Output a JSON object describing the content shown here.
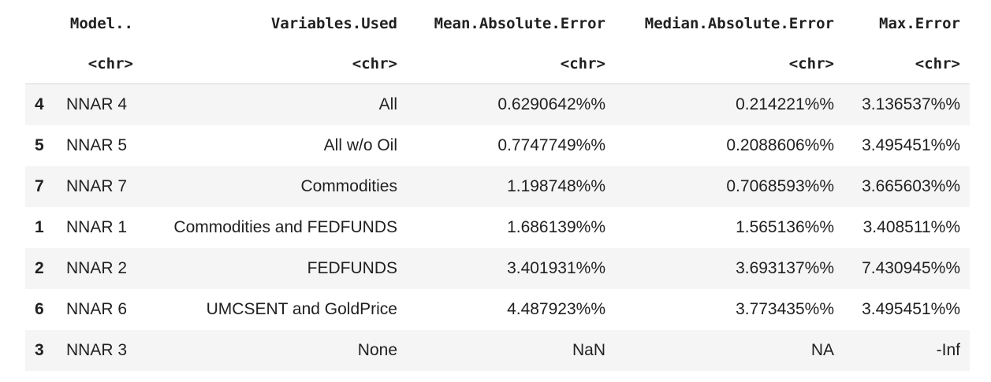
{
  "columns": [
    {
      "name": "",
      "type": ""
    },
    {
      "name": "Model..",
      "type": "<chr>"
    },
    {
      "name": "Variables.Used",
      "type": "<chr>"
    },
    {
      "name": "Mean.Absolute.Error",
      "type": "<chr>"
    },
    {
      "name": "Median.Absolute.Error",
      "type": "<chr>"
    },
    {
      "name": "Max.Error",
      "type": "<chr>"
    }
  ],
  "rows": [
    {
      "index": "4",
      "model": "NNAR 4",
      "variables": "All",
      "mae": "0.6290642%%",
      "medae": "0.214221%%",
      "max": "3.136537%%"
    },
    {
      "index": "5",
      "model": "NNAR 5",
      "variables": "All w/o Oil",
      "mae": "0.7747749%%",
      "medae": "0.2088606%%",
      "max": "3.495451%%"
    },
    {
      "index": "7",
      "model": "NNAR 7",
      "variables": "Commodities",
      "mae": "1.198748%%",
      "medae": "0.7068593%%",
      "max": "3.665603%%"
    },
    {
      "index": "1",
      "model": "NNAR 1",
      "variables": "Commodities and FEDFUNDS",
      "mae": "1.686139%%",
      "medae": "1.565136%%",
      "max": "3.408511%%"
    },
    {
      "index": "2",
      "model": "NNAR 2",
      "variables": "FEDFUNDS",
      "mae": "3.401931%%",
      "medae": "3.693137%%",
      "max": "7.430945%%"
    },
    {
      "index": "6",
      "model": "NNAR 6",
      "variables": "UMCSENT and GoldPrice",
      "mae": "4.487923%%",
      "medae": "3.773435%%",
      "max": "3.495451%%"
    },
    {
      "index": "3",
      "model": "NNAR 3",
      "variables": "None",
      "mae": "NaN",
      "medae": "NA",
      "max": "-Inf"
    }
  ]
}
